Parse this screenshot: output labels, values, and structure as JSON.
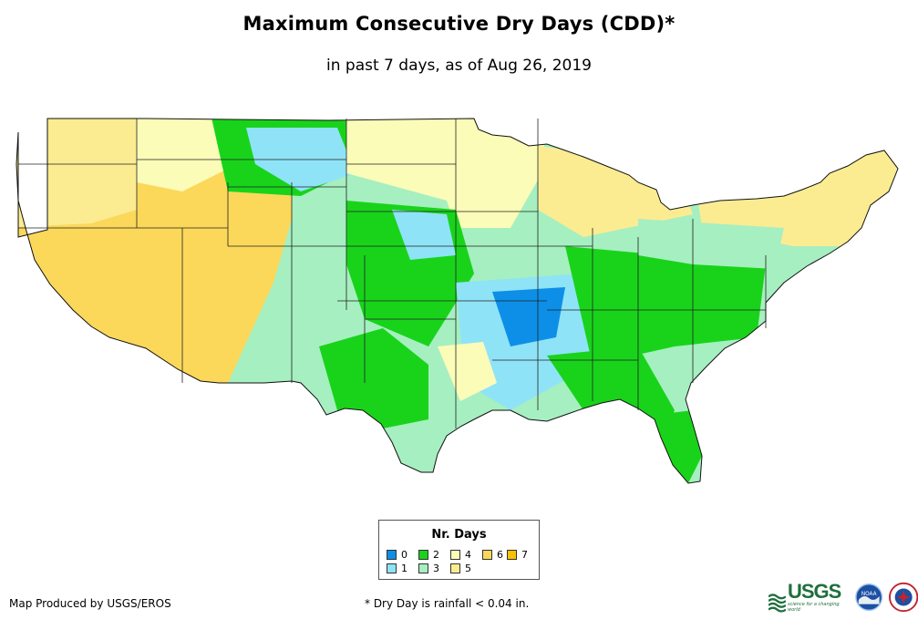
{
  "title": "Maximum Consecutive Dry Days (CDD)*",
  "subtitle": "in past 7 days, as of Aug 26, 2019",
  "legend": {
    "title": "Nr. Days",
    "items": [
      {
        "label": "0",
        "color": "#0d8fe8"
      },
      {
        "label": "1",
        "color": "#8fe3f7"
      },
      {
        "label": "2",
        "color": "#19d31b"
      },
      {
        "label": "3",
        "color": "#a6efc0"
      },
      {
        "label": "4",
        "color": "#fbfcb8"
      },
      {
        "label": "5",
        "color": "#fbec92"
      },
      {
        "label": "6",
        "color": "#fbd85a"
      },
      {
        "label": "7",
        "color": "#f9c200"
      }
    ]
  },
  "footer": {
    "credit": "Map Produced by USGS/EROS",
    "note": "* Dry Day is rainfall < 0.04 in."
  },
  "logos": {
    "usgs_text": "USGS",
    "usgs_tagline": "science for a changing world",
    "noaa_text": "NOAA"
  }
}
